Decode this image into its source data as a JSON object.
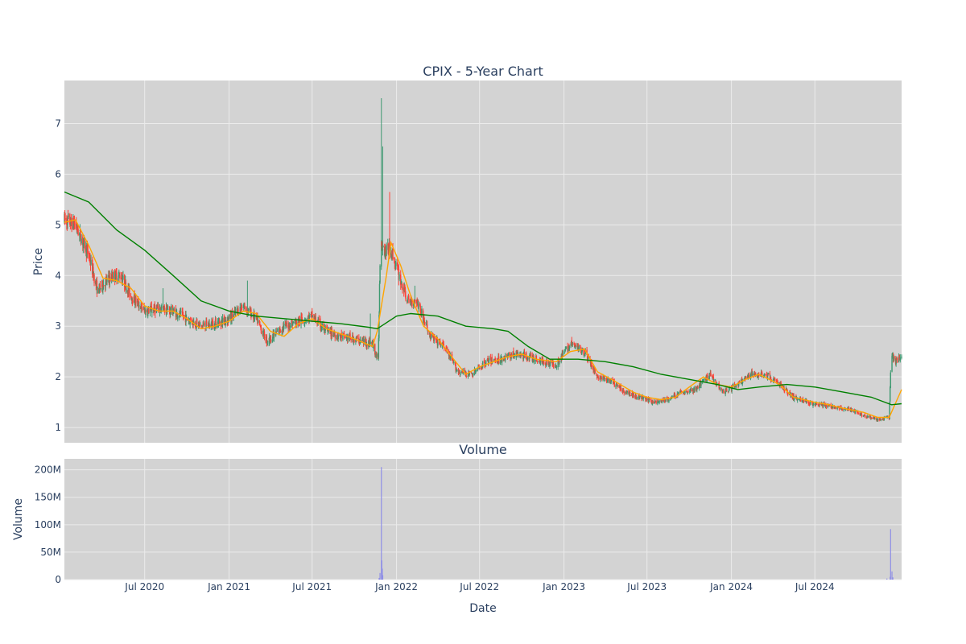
{
  "colors": {
    "plot_bg": "#d3d3d3",
    "grid": "#ebebeb",
    "up": "#3d9970",
    "down": "#ff4136",
    "ma_short": "#ffa500",
    "ma_long": "#008000",
    "volume": "#8f8fe6",
    "text": "#2a3f5f"
  },
  "chart_data": [
    {
      "type": "candlestick",
      "title": "CPIX - 5-Year Chart",
      "ylabel": "Price",
      "ylim": [
        0.7,
        7.85
      ],
      "yticks": [
        1,
        2,
        3,
        4,
        5,
        6,
        7
      ],
      "xlim": [
        "2020-01-08",
        "2025-01-06"
      ],
      "grid": true,
      "series": [
        {
          "kind": "ohlc",
          "anchors": [
            [
              "2020-01-08",
              5.1
            ],
            [
              "2020-02-01",
              5.0
            ],
            [
              "2020-03-01",
              4.4
            ],
            [
              "2020-03-20",
              3.7
            ],
            [
              "2020-04-10",
              3.9
            ],
            [
              "2020-04-25",
              4.0
            ],
            [
              "2020-05-10",
              4.0
            ],
            [
              "2020-06-01",
              3.6
            ],
            [
              "2020-07-01",
              3.3
            ],
            [
              "2020-08-01",
              3.35
            ],
            [
              "2020-09-01",
              3.3
            ],
            [
              "2020-10-01",
              3.15
            ],
            [
              "2020-11-01",
              3.0
            ],
            [
              "2020-12-01",
              3.05
            ],
            [
              "2021-01-01",
              3.15
            ],
            [
              "2021-02-01",
              3.4
            ],
            [
              "2021-03-01",
              3.15
            ],
            [
              "2021-03-25",
              2.7
            ],
            [
              "2021-05-01",
              3.0
            ],
            [
              "2021-06-01",
              3.1
            ],
            [
              "2021-07-01",
              3.2
            ],
            [
              "2021-08-01",
              2.9
            ],
            [
              "2021-09-01",
              2.8
            ],
            [
              "2021-10-01",
              2.75
            ],
            [
              "2021-11-10",
              2.65
            ],
            [
              "2021-11-22",
              2.3
            ],
            [
              "2021-11-27",
              4.8
            ],
            [
              "2021-12-05",
              4.5
            ],
            [
              "2021-12-20",
              4.5
            ],
            [
              "2022-01-10",
              3.9
            ],
            [
              "2022-01-25",
              3.5
            ],
            [
              "2022-02-15",
              3.5
            ],
            [
              "2022-03-15",
              2.8
            ],
            [
              "2022-04-15",
              2.6
            ],
            [
              "2022-05-15",
              2.1
            ],
            [
              "2022-06-15",
              2.05
            ],
            [
              "2022-07-15",
              2.3
            ],
            [
              "2022-08-15",
              2.35
            ],
            [
              "2022-09-15",
              2.45
            ],
            [
              "2022-10-15",
              2.4
            ],
            [
              "2022-11-15",
              2.3
            ],
            [
              "2022-12-15",
              2.25
            ],
            [
              "2023-01-15",
              2.65
            ],
            [
              "2023-02-15",
              2.5
            ],
            [
              "2023-03-15",
              2.0
            ],
            [
              "2023-04-15",
              1.9
            ],
            [
              "2023-05-15",
              1.7
            ],
            [
              "2023-06-15",
              1.6
            ],
            [
              "2023-07-15",
              1.5
            ],
            [
              "2023-08-15",
              1.55
            ],
            [
              "2023-09-15",
              1.7
            ],
            [
              "2023-10-15",
              1.75
            ],
            [
              "2023-11-15",
              2.05
            ],
            [
              "2023-12-15",
              1.7
            ],
            [
              "2024-01-15",
              1.85
            ],
            [
              "2024-02-15",
              2.05
            ],
            [
              "2024-03-15",
              2.05
            ],
            [
              "2024-04-15",
              1.85
            ],
            [
              "2024-05-15",
              1.6
            ],
            [
              "2024-06-15",
              1.5
            ],
            [
              "2024-07-15",
              1.45
            ],
            [
              "2024-08-15",
              1.4
            ],
            [
              "2024-09-15",
              1.35
            ],
            [
              "2024-10-15",
              1.25
            ],
            [
              "2024-11-15",
              1.15
            ],
            [
              "2024-12-10",
              1.2
            ],
            [
              "2024-12-14",
              2.4
            ],
            [
              "2024-12-25",
              2.3
            ],
            [
              "2025-01-06",
              2.4
            ]
          ],
          "spikes": [
            [
              "2021-11-29",
              7.5
            ],
            [
              "2021-12-02",
              6.55
            ],
            [
              "2021-12-17",
              5.65
            ],
            [
              "2022-02-10",
              3.8
            ],
            [
              "2020-08-10",
              3.75
            ],
            [
              "2021-02-10",
              3.9
            ],
            [
              "2024-12-14",
              3.05
            ],
            [
              "2021-11-05",
              3.25
            ]
          ]
        },
        {
          "name": "",
          "kind": "line",
          "color": "#ffa500",
          "points": [
            [
              "2020-01-08",
              5.05
            ],
            [
              "2020-02-01",
              5.1
            ],
            [
              "2020-03-01",
              4.6
            ],
            [
              "2020-04-01",
              3.95
            ],
            [
              "2020-05-01",
              3.9
            ],
            [
              "2020-06-01",
              3.75
            ],
            [
              "2020-07-01",
              3.4
            ],
            [
              "2020-08-01",
              3.3
            ],
            [
              "2020-09-01",
              3.3
            ],
            [
              "2020-10-01",
              3.15
            ],
            [
              "2020-11-01",
              2.95
            ],
            [
              "2020-12-01",
              3.0
            ],
            [
              "2021-01-01",
              3.1
            ],
            [
              "2021-02-01",
              3.3
            ],
            [
              "2021-03-01",
              3.25
            ],
            [
              "2021-04-01",
              2.9
            ],
            [
              "2021-05-01",
              2.8
            ],
            [
              "2021-06-01",
              3.05
            ],
            [
              "2021-07-01",
              3.15
            ],
            [
              "2021-08-01",
              2.95
            ],
            [
              "2021-09-01",
              2.85
            ],
            [
              "2021-10-01",
              2.75
            ],
            [
              "2021-11-10",
              2.6
            ],
            [
              "2021-11-20",
              2.9
            ],
            [
              "2021-12-10",
              4.0
            ],
            [
              "2021-12-20",
              4.65
            ],
            [
              "2022-01-10",
              4.2
            ],
            [
              "2022-02-01",
              3.6
            ],
            [
              "2022-03-01",
              3.0
            ],
            [
              "2022-04-01",
              2.75
            ],
            [
              "2022-05-01",
              2.4
            ],
            [
              "2022-06-01",
              2.05
            ],
            [
              "2022-07-01",
              2.2
            ],
            [
              "2022-08-01",
              2.3
            ],
            [
              "2022-09-01",
              2.4
            ],
            [
              "2022-10-01",
              2.45
            ],
            [
              "2022-11-01",
              2.35
            ],
            [
              "2022-12-15",
              2.3
            ],
            [
              "2023-01-15",
              2.5
            ],
            [
              "2023-02-15",
              2.55
            ],
            [
              "2023-03-15",
              2.1
            ],
            [
              "2023-04-15",
              1.95
            ],
            [
              "2023-06-01",
              1.7
            ],
            [
              "2023-07-01",
              1.6
            ],
            [
              "2023-08-01",
              1.55
            ],
            [
              "2023-09-01",
              1.6
            ],
            [
              "2023-10-01",
              1.8
            ],
            [
              "2023-11-01",
              2.0
            ],
            [
              "2023-12-01",
              1.85
            ],
            [
              "2024-01-01",
              1.8
            ],
            [
              "2024-02-01",
              1.95
            ],
            [
              "2024-03-01",
              2.05
            ],
            [
              "2024-04-15",
              1.85
            ],
            [
              "2024-05-15",
              1.6
            ],
            [
              "2024-07-01",
              1.5
            ],
            [
              "2024-08-01",
              1.45
            ],
            [
              "2024-09-01",
              1.38
            ],
            [
              "2024-10-15",
              1.3
            ],
            [
              "2024-11-15",
              1.2
            ],
            [
              "2024-12-10",
              1.2
            ],
            [
              "2025-01-06",
              1.75
            ]
          ]
        },
        {
          "name": "",
          "kind": "line",
          "color": "#008000",
          "points": [
            [
              "2020-01-08",
              5.65
            ],
            [
              "2020-03-01",
              5.45
            ],
            [
              "2020-05-01",
              4.9
            ],
            [
              "2020-07-01",
              4.5
            ],
            [
              "2020-09-01",
              4.0
            ],
            [
              "2020-11-01",
              3.5
            ],
            [
              "2021-01-01",
              3.3
            ],
            [
              "2021-03-01",
              3.2
            ],
            [
              "2021-05-01",
              3.15
            ],
            [
              "2021-07-01",
              3.1
            ],
            [
              "2021-09-01",
              3.05
            ],
            [
              "2021-11-01",
              2.98
            ],
            [
              "2021-11-20",
              2.95
            ],
            [
              "2022-01-01",
              3.2
            ],
            [
              "2022-02-01",
              3.25
            ],
            [
              "2022-04-01",
              3.2
            ],
            [
              "2022-06-01",
              3.0
            ],
            [
              "2022-08-01",
              2.95
            ],
            [
              "2022-09-01",
              2.9
            ],
            [
              "2022-10-15",
              2.6
            ],
            [
              "2022-12-01",
              2.35
            ],
            [
              "2023-02-01",
              2.35
            ],
            [
              "2023-04-01",
              2.3
            ],
            [
              "2023-06-01",
              2.2
            ],
            [
              "2023-08-01",
              2.05
            ],
            [
              "2023-10-01",
              1.95
            ],
            [
              "2023-12-01",
              1.85
            ],
            [
              "2024-01-15",
              1.75
            ],
            [
              "2024-03-01",
              1.8
            ],
            [
              "2024-05-01",
              1.85
            ],
            [
              "2024-07-01",
              1.8
            ],
            [
              "2024-09-01",
              1.7
            ],
            [
              "2024-11-01",
              1.6
            ],
            [
              "2024-12-15",
              1.45
            ],
            [
              "2025-01-06",
              1.47
            ]
          ]
        }
      ]
    },
    {
      "type": "bar",
      "title": "Volume",
      "xlabel": "Date",
      "ylabel": "Volume",
      "ylim": [
        0,
        220000000
      ],
      "yticks": [
        0,
        50000000,
        100000000,
        150000000,
        200000000
      ],
      "ytick_labels": [
        "0",
        "50M",
        "100M",
        "150M",
        "200M"
      ],
      "xticks": [
        "2020-07-01",
        "2021-01-01",
        "2021-07-01",
        "2022-01-01",
        "2022-07-01",
        "2023-01-01",
        "2023-07-01",
        "2024-01-01",
        "2024-07-01"
      ],
      "xtick_labels": [
        "Jul 2020",
        "Jan 2021",
        "Jul 2021",
        "Jan 2022",
        "Jul 2022",
        "Jan 2023",
        "Jul 2023",
        "Jan 2024",
        "Jul 2024"
      ],
      "bars": [
        [
          "2021-11-24",
          3000000
        ],
        [
          "2021-11-26",
          12000000
        ],
        [
          "2021-11-29",
          205000000
        ],
        [
          "2021-11-30",
          35000000
        ],
        [
          "2021-12-01",
          20000000
        ],
        [
          "2021-12-02",
          8000000
        ],
        [
          "2024-12-05",
          2000000
        ],
        [
          "2024-12-12",
          5000000
        ],
        [
          "2024-12-13",
          92000000
        ],
        [
          "2024-12-16",
          15000000
        ],
        [
          "2024-12-18",
          4000000
        ]
      ]
    }
  ]
}
